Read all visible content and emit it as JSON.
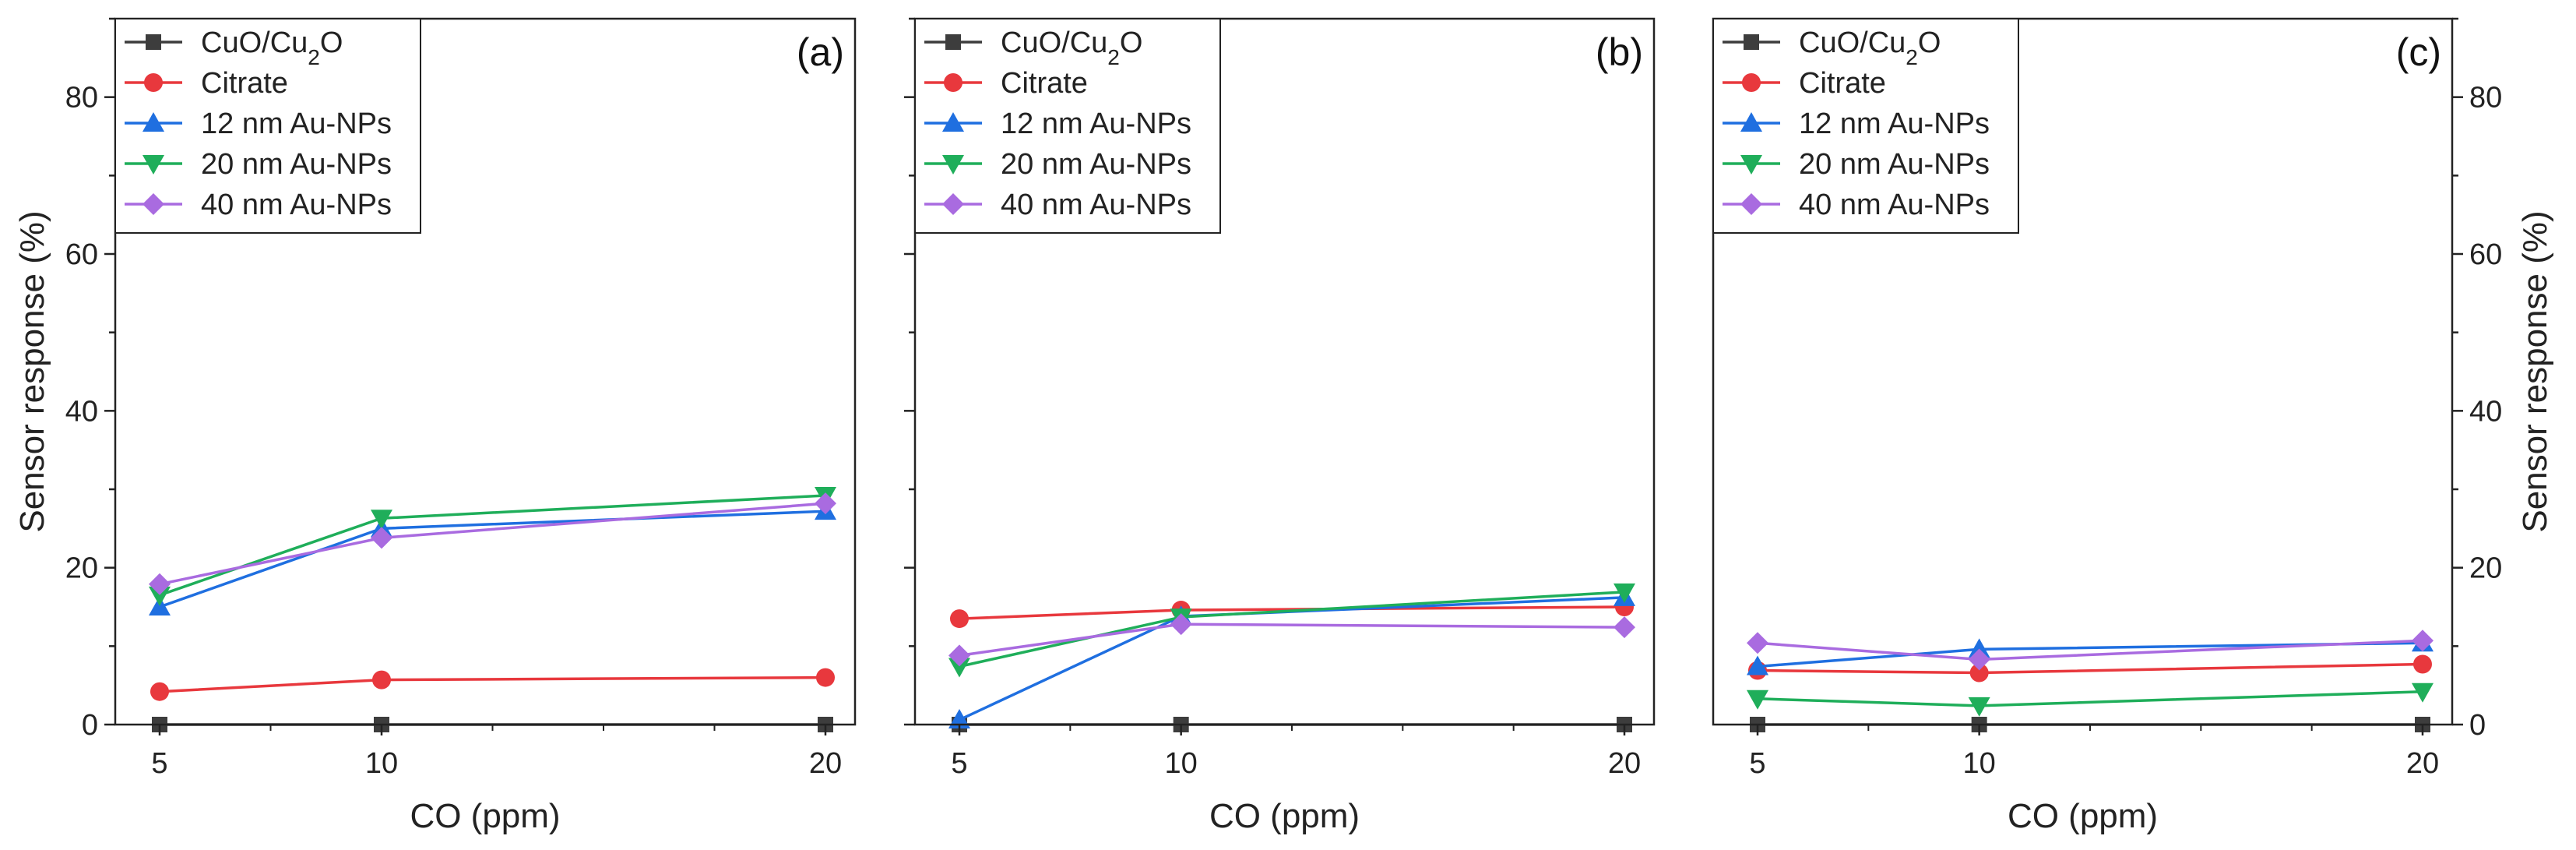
{
  "chart_data": {
    "type": "line",
    "xlabel": "CO (ppm)",
    "ylabel": "Sensor response (%)",
    "ylim": [
      0,
      90
    ],
    "yticks": [
      0,
      20,
      40,
      60,
      80
    ],
    "x": [
      5,
      10,
      20
    ],
    "xtick_labels": [
      "5",
      "10",
      "20"
    ],
    "legend_position": "top-left",
    "series_style": [
      {
        "name": "CuO/Cu2O",
        "label_main": "CuO/Cu",
        "label_sub": "2",
        "label_tail": "O",
        "color": "#3d3d3d",
        "marker": "square"
      },
      {
        "name": "Citrate",
        "label_main": "Citrate",
        "label_sub": "",
        "label_tail": "",
        "color": "#e8383d",
        "marker": "circle"
      },
      {
        "name": "12 nm Au-NPs",
        "label_main": "12 nm Au-NPs",
        "label_sub": "",
        "label_tail": "",
        "color": "#1f6fe0",
        "marker": "triangle-up"
      },
      {
        "name": "20 nm Au-NPs",
        "label_main": "20 nm Au-NPs",
        "label_sub": "",
        "label_tail": "",
        "color": "#1fae5a",
        "marker": "triangle-down"
      },
      {
        "name": "40 nm Au-NPs",
        "label_main": "40 nm Au-NPs",
        "label_sub": "",
        "label_tail": "",
        "color": "#a96be0",
        "marker": "diamond"
      }
    ],
    "panels": [
      {
        "tag": "(a)",
        "series": [
          {
            "name": "CuO/Cu2O",
            "values": [
              0,
              0,
              0
            ]
          },
          {
            "name": "Citrate",
            "values": [
              4.2,
              5.7,
              6.0
            ]
          },
          {
            "name": "12 nm Au-NPs",
            "values": [
              15.0,
              25.0,
              27.2
            ]
          },
          {
            "name": "20 nm Au-NPs",
            "values": [
              16.5,
              26.3,
              29.2
            ]
          },
          {
            "name": "40 nm Au-NPs",
            "values": [
              17.9,
              23.8,
              28.2
            ]
          }
        ]
      },
      {
        "tag": "(b)",
        "series": [
          {
            "name": "CuO/Cu2O",
            "values": [
              0,
              0,
              0
            ]
          },
          {
            "name": "Citrate",
            "values": [
              13.5,
              14.6,
              15.0
            ]
          },
          {
            "name": "12 nm Au-NPs",
            "values": [
              0.6,
              13.8,
              16.2
            ]
          },
          {
            "name": "20 nm Au-NPs",
            "values": [
              7.4,
              13.7,
              16.9
            ]
          },
          {
            "name": "40 nm Au-NPs",
            "values": [
              8.8,
              12.8,
              12.4
            ]
          }
        ]
      },
      {
        "tag": "(c)",
        "series": [
          {
            "name": "CuO/Cu2O",
            "values": [
              0,
              0,
              0
            ]
          },
          {
            "name": "Citrate",
            "values": [
              6.9,
              6.6,
              7.7
            ]
          },
          {
            "name": "12 nm Au-NPs",
            "values": [
              7.4,
              9.6,
              10.4
            ]
          },
          {
            "name": "20 nm Au-NPs",
            "values": [
              3.3,
              2.4,
              4.2
            ]
          },
          {
            "name": "40 nm Au-NPs",
            "values": [
              10.4,
              8.3,
              10.7
            ]
          }
        ]
      }
    ]
  }
}
